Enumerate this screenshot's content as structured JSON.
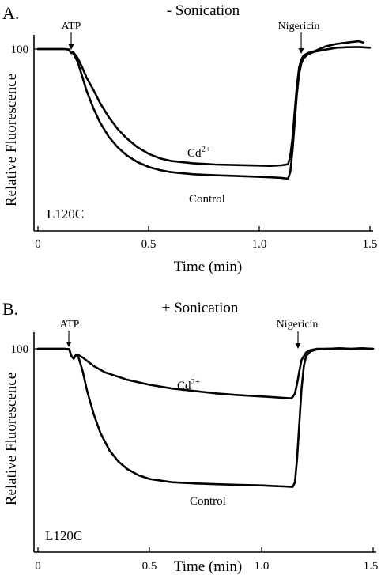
{
  "chart_data": [
    {
      "type": "line",
      "panel_label": "A.",
      "title": "- Sonication",
      "xlabel": "Time (min)",
      "ylabel": "Relative Fluorescence",
      "xlim": [
        0,
        1.5
      ],
      "x_ticks": [
        "0",
        "0.5",
        "1.0",
        "1.5"
      ],
      "y_tick_label": "100",
      "y_tick_value": 100,
      "ylim": [
        20,
        107
      ],
      "strain": "L120C",
      "annotations": [
        {
          "label": "ATP",
          "x": 0.15
        },
        {
          "label": "Nigericin",
          "x": 1.18
        }
      ],
      "series": [
        {
          "name": "Cd2+",
          "x": [
            0,
            0.12,
            0.14,
            0.15,
            0.16,
            0.18,
            0.2,
            0.22,
            0.25,
            0.28,
            0.32,
            0.36,
            0.4,
            0.45,
            0.5,
            0.55,
            0.6,
            0.7,
            0.8,
            0.9,
            1.0,
            1.05,
            1.1,
            1.13,
            1.14,
            1.15,
            1.16,
            1.17,
            1.18,
            1.19,
            1.2,
            1.22,
            1.25,
            1.3,
            1.35,
            1.4,
            1.45,
            1.47
          ],
          "y": [
            100,
            100,
            99.8,
            98.5,
            98.8,
            96.5,
            93,
            89,
            84.5,
            79.5,
            74,
            69.5,
            66,
            62.5,
            60,
            58.3,
            57.3,
            56.4,
            55.9,
            55.7,
            55.5,
            55.4,
            55.6,
            56,
            59,
            66,
            76,
            86,
            93,
            96,
            97.5,
            98.5,
            99.2,
            101,
            102,
            102.5,
            103,
            102.5
          ]
        },
        {
          "name": "Control",
          "x": [
            0,
            0.12,
            0.14,
            0.15,
            0.16,
            0.18,
            0.2,
            0.22,
            0.25,
            0.28,
            0.32,
            0.36,
            0.4,
            0.45,
            0.5,
            0.55,
            0.6,
            0.7,
            0.8,
            0.9,
            1.0,
            1.05,
            1.1,
            1.13,
            1.14,
            1.15,
            1.16,
            1.17,
            1.18,
            1.19,
            1.2,
            1.22,
            1.25,
            1.3,
            1.35,
            1.4,
            1.45,
            1.5
          ],
          "y": [
            100,
            100,
            99.8,
            98.5,
            98.5,
            95,
            89.5,
            84,
            77.5,
            72,
            66.5,
            62.5,
            59.5,
            56.8,
            55,
            53.8,
            53,
            52.2,
            51.8,
            51.5,
            51.2,
            51,
            50.8,
            50.5,
            53,
            61,
            72,
            83,
            90.5,
            94.5,
            96.5,
            98,
            99,
            99.8,
            100.5,
            100.7,
            100.8,
            100.5
          ]
        }
      ],
      "series_labels": [
        "Cd",
        "2+",
        "Control"
      ]
    },
    {
      "type": "line",
      "panel_label": "B.",
      "title": "+ Sonication",
      "xlabel": "Time (min)",
      "ylabel": "Relative Fluorescence",
      "xlim": [
        0,
        1.5
      ],
      "x_ticks": [
        "0",
        "0.5",
        "1.0",
        "1.5"
      ],
      "y_tick_label": "100",
      "y_tick_value": 100,
      "ylim": [
        20,
        107
      ],
      "strain": "L120C",
      "annotations": [
        {
          "label": "ATP",
          "x": 0.14
        },
        {
          "label": "Nigericin",
          "x": 1.17
        }
      ],
      "series": [
        {
          "name": "Cd2+",
          "x": [
            0,
            0.12,
            0.14,
            0.15,
            0.16,
            0.17,
            0.18,
            0.2,
            0.25,
            0.3,
            0.4,
            0.5,
            0.6,
            0.7,
            0.8,
            0.9,
            1.0,
            1.05,
            1.1,
            1.13,
            1.14,
            1.15,
            1.16,
            1.17,
            1.18,
            1.2,
            1.22,
            1.25,
            1.3,
            1.35,
            1.4,
            1.45,
            1.5
          ],
          "y": [
            100,
            100,
            99.8,
            97,
            96,
            97.5,
            97.5,
            96.5,
            93,
            90.5,
            87.5,
            85.5,
            84,
            83,
            82,
            81.3,
            80.8,
            80.5,
            80.2,
            80,
            80.5,
            82,
            86,
            91,
            95.5,
            98.5,
            99.5,
            100,
            100,
            100.2,
            100,
            100.2,
            100
          ]
        },
        {
          "name": "Control",
          "x": [
            0,
            0.12,
            0.14,
            0.15,
            0.16,
            0.17,
            0.18,
            0.2,
            0.22,
            0.25,
            0.28,
            0.32,
            0.36,
            0.4,
            0.45,
            0.5,
            0.6,
            0.7,
            0.8,
            0.9,
            1.0,
            1.05,
            1.1,
            1.14,
            1.15,
            1.16,
            1.17,
            1.18,
            1.19,
            1.2,
            1.22,
            1.25,
            1.3,
            1.35,
            1.4,
            1.45,
            1.5
          ],
          "y": [
            100,
            100,
            99.8,
            97,
            96,
            97.5,
            97,
            91,
            83,
            73.5,
            66,
            59,
            54.5,
            51.5,
            49,
            47.5,
            46.2,
            45.7,
            45.4,
            45.1,
            44.9,
            44.7,
            44.5,
            44.3,
            46,
            56,
            70,
            84,
            93,
            97,
            99,
            99.8,
            100,
            100.2,
            100,
            100.2,
            100
          ]
        }
      ],
      "series_labels": [
        "Cd",
        "2+",
        "Control"
      ]
    }
  ]
}
